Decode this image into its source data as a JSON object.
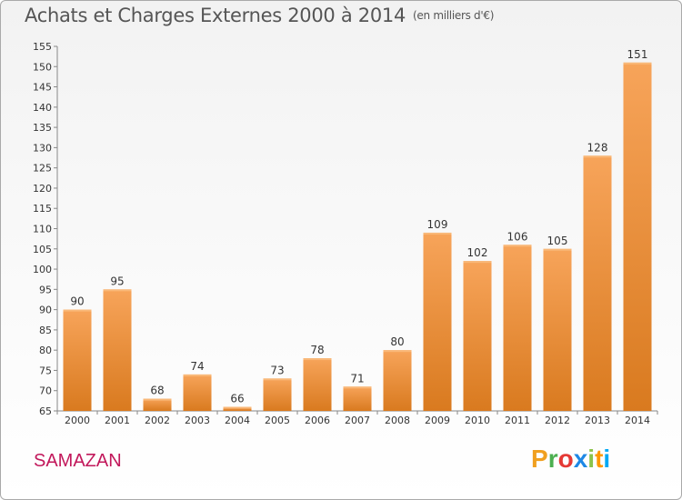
{
  "chart_data": {
    "type": "bar",
    "title": "Achats et Charges Externes 2000 à 2014",
    "subtitle": "(en milliers d'€)",
    "categories": [
      "2000",
      "2001",
      "2002",
      "2003",
      "2004",
      "2005",
      "2006",
      "2007",
      "2008",
      "2009",
      "2010",
      "2011",
      "2012",
      "2013",
      "2014"
    ],
    "values": [
      90,
      95,
      68,
      74,
      66,
      73,
      78,
      71,
      80,
      109,
      102,
      106,
      105,
      128,
      151
    ],
    "ylim": [
      65,
      155
    ],
    "yticks": [
      65,
      70,
      75,
      80,
      85,
      90,
      95,
      100,
      105,
      110,
      115,
      120,
      125,
      130,
      135,
      140,
      145,
      150,
      155
    ],
    "grid": false,
    "bar_color": "#f0923a",
    "data_labels": true
  },
  "footer": {
    "commune": "SAMAZAN",
    "logo_letters": [
      "P",
      "r",
      "o",
      "x",
      "i",
      "t",
      "i"
    ],
    "logo_colors": [
      "#f0a020",
      "#4caf50",
      "#e53935",
      "#1e88e5",
      "#8bc34a",
      "#ff9800",
      "#03a9f4"
    ]
  }
}
